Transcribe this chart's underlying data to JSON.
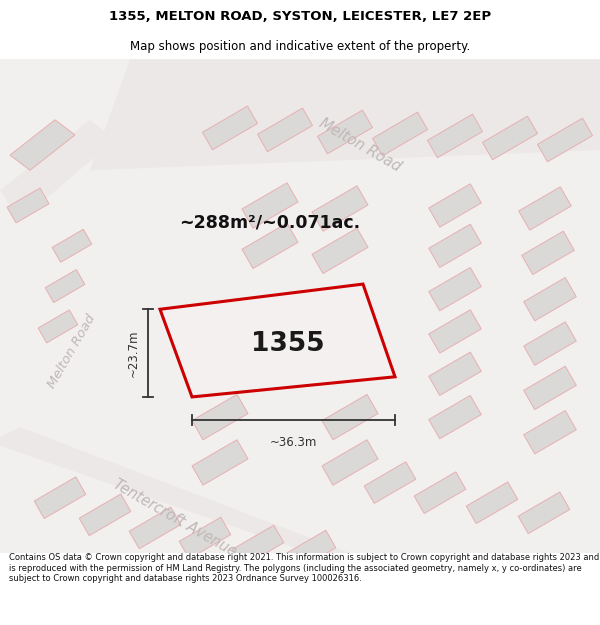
{
  "title_line1": "1355, MELTON ROAD, SYSTON, LEICESTER, LE7 2EP",
  "title_line2": "Map shows position and indicative extent of the property.",
  "footer_text": "Contains OS data © Crown copyright and database right 2021. This information is subject to Crown copyright and database rights 2023 and is reproduced with the permission of HM Land Registry. The polygons (including the associated geometry, namely x, y co-ordinates) are subject to Crown copyright and database rights 2023 Ordnance Survey 100026316.",
  "area_label": "~288m²/~0.071ac.",
  "property_number": "1355",
  "width_label": "~36.3m",
  "height_label": "~23.7m",
  "map_bg": "#f2efef",
  "building_fill": "#dbd8d8",
  "building_edge": "#e8b0b0",
  "property_edge": "#cc0000",
  "property_fill": "#f5f0f0",
  "road_label_color": "#c0b8b8",
  "dim_color": "#333333",
  "title_color": "#000000",
  "footer_color": "#111111"
}
